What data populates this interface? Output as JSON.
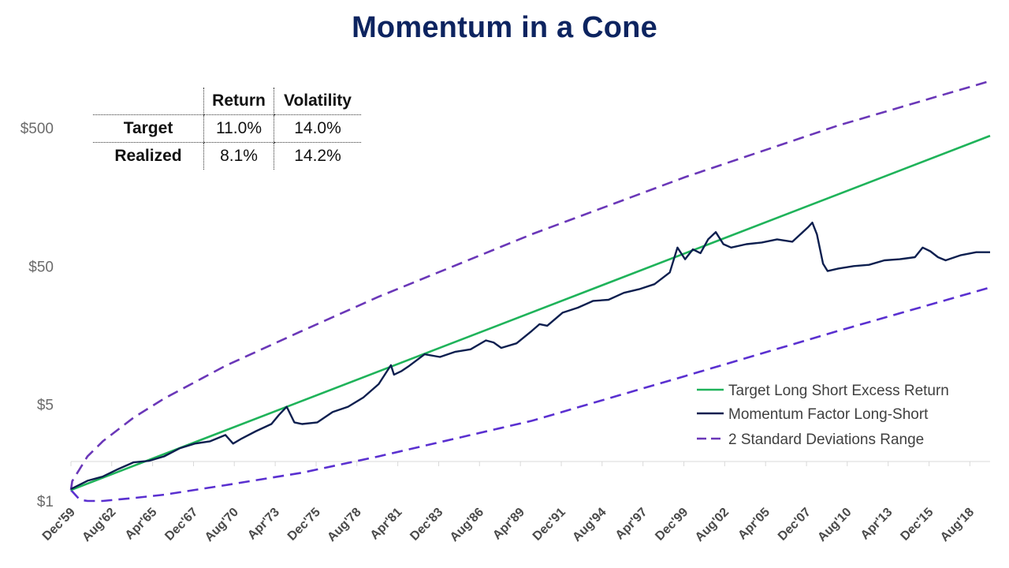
{
  "title": "Momentum in a Cone",
  "stats_table": {
    "headers": [
      "",
      "Return",
      "Volatility"
    ],
    "rows": [
      {
        "label": "Target",
        "return": "11.0%",
        "volatility": "14.0%"
      },
      {
        "label": "Realized",
        "return": "8.1%",
        "volatility": "14.2%"
      }
    ]
  },
  "chart_data": {
    "type": "line",
    "title": "Momentum in a Cone",
    "xlabel": "",
    "ylabel": "",
    "y_scale": "log",
    "ylim": [
      1,
      1000
    ],
    "xlim": [
      1959.92,
      2019.9
    ],
    "y_ticks": [
      1,
      5,
      50,
      500
    ],
    "y_tick_labels": [
      "$1",
      "$5",
      "$50",
      "$500"
    ],
    "x_ticks": [
      1959.92,
      1962.58,
      1965.25,
      1967.92,
      1970.58,
      1973.25,
      1975.92,
      1978.58,
      1981.25,
      1983.92,
      1986.58,
      1989.25,
      1991.92,
      1994.58,
      1997.25,
      1999.92,
      2002.58,
      2005.25,
      2007.92,
      2010.58,
      2013.25,
      2015.92,
      2018.58
    ],
    "x_tick_labels": [
      "Dec'59",
      "Aug'62",
      "Apr'65",
      "Dec'67",
      "Aug'70",
      "Apr'73",
      "Dec'75",
      "Aug'78",
      "Apr'81",
      "Dec'83",
      "Aug'86",
      "Apr'89",
      "Dec'91",
      "Aug'94",
      "Apr'97",
      "Dec'99",
      "Aug'02",
      "Apr'05",
      "Dec'07",
      "Aug'10",
      "Apr'13",
      "Dec'15",
      "Aug'18"
    ],
    "grid": false,
    "legend_position": "bottom-right",
    "series": [
      {
        "name": "Target Long Short Excess Return",
        "color": "#1fb35a",
        "style": "solid",
        "x": [
          1959.92,
          2019.9
        ],
        "values": [
          1.2,
          438
        ]
      },
      {
        "name": "Momentum Factor Long-Short",
        "color": "#0d1f4f",
        "style": "solid",
        "x": [
          1959.92,
          1961.0,
          1962.0,
          1963.0,
          1964.0,
          1965.0,
          1966.0,
          1967.0,
          1968.0,
          1969.0,
          1970.0,
          1970.5,
          1971.0,
          1972.0,
          1973.0,
          1973.5,
          1974.0,
          1974.5,
          1975.0,
          1976.0,
          1977.0,
          1978.0,
          1979.0,
          1980.0,
          1980.8,
          1981.0,
          1981.5,
          1982.0,
          1983.0,
          1984.0,
          1985.0,
          1986.0,
          1987.0,
          1987.5,
          1988.0,
          1989.0,
          1990.0,
          1990.5,
          1991.0,
          1992.0,
          1993.0,
          1994.0,
          1995.0,
          1996.0,
          1997.0,
          1998.0,
          1999.0,
          1999.5,
          2000.0,
          2000.5,
          2001.0,
          2001.5,
          2002.0,
          2002.5,
          2003.0,
          2004.0,
          2005.0,
          2006.0,
          2007.0,
          2008.0,
          2008.3,
          2008.6,
          2009.0,
          2009.3,
          2010.0,
          2011.0,
          2012.0,
          2013.0,
          2014.0,
          2015.0,
          2015.5,
          2016.0,
          2016.5,
          2017.0,
          2018.0,
          2019.0,
          2019.9
        ],
        "values": [
          1.22,
          1.4,
          1.5,
          1.7,
          1.9,
          1.95,
          2.1,
          2.4,
          2.6,
          2.7,
          3.0,
          2.6,
          2.8,
          3.2,
          3.6,
          4.2,
          4.8,
          3.7,
          3.6,
          3.7,
          4.4,
          4.8,
          5.6,
          7.0,
          9.6,
          8.2,
          8.7,
          9.5,
          11.5,
          11.0,
          12.0,
          12.5,
          14.5,
          14.0,
          12.8,
          13.8,
          17.0,
          19.0,
          18.5,
          23.0,
          25.0,
          28.0,
          28.5,
          32.0,
          34.0,
          37.0,
          45.0,
          68.0,
          56.0,
          66.0,
          62.0,
          78.0,
          88.0,
          72.0,
          68.0,
          72.0,
          74.0,
          78.0,
          75.0,
          95.0,
          103.0,
          85.0,
          52.0,
          46.0,
          48.0,
          50.0,
          51.0,
          55.0,
          56.0,
          58.0,
          68.0,
          64.0,
          58.0,
          55.0,
          60.0,
          63.0,
          63.0
        ]
      },
      {
        "name": "2 Standard Deviations Range",
        "color": "#6a37b8",
        "style": "dashed",
        "upper": {
          "x": [
            1959.92,
            1960.0,
            1961.0,
            1962.0,
            1964.0,
            1966.0,
            1970.0,
            1975.0,
            1980.0,
            1990.0,
            2000.0,
            2010.0,
            2019.9
          ],
          "values": [
            1.2,
            1.39,
            2.1,
            2.7,
            4.0,
            5.5,
            9.5,
            17.0,
            30.0,
            85.0,
            220.0,
            520.0,
            1090.0
          ]
        },
        "lower": {
          "x": [
            1959.92,
            1960.5,
            1961.0,
            1962.0,
            1964.0,
            1966.0,
            1970.0,
            1975.0,
            1980.0,
            1990.0,
            2000.0,
            2010.0,
            2019.9
          ],
          "values": [
            1.2,
            1.02,
            1.0,
            1.0,
            1.05,
            1.11,
            1.3,
            1.6,
            2.1,
            3.8,
            8.0,
            17.0,
            35.0
          ]
        }
      }
    ]
  }
}
